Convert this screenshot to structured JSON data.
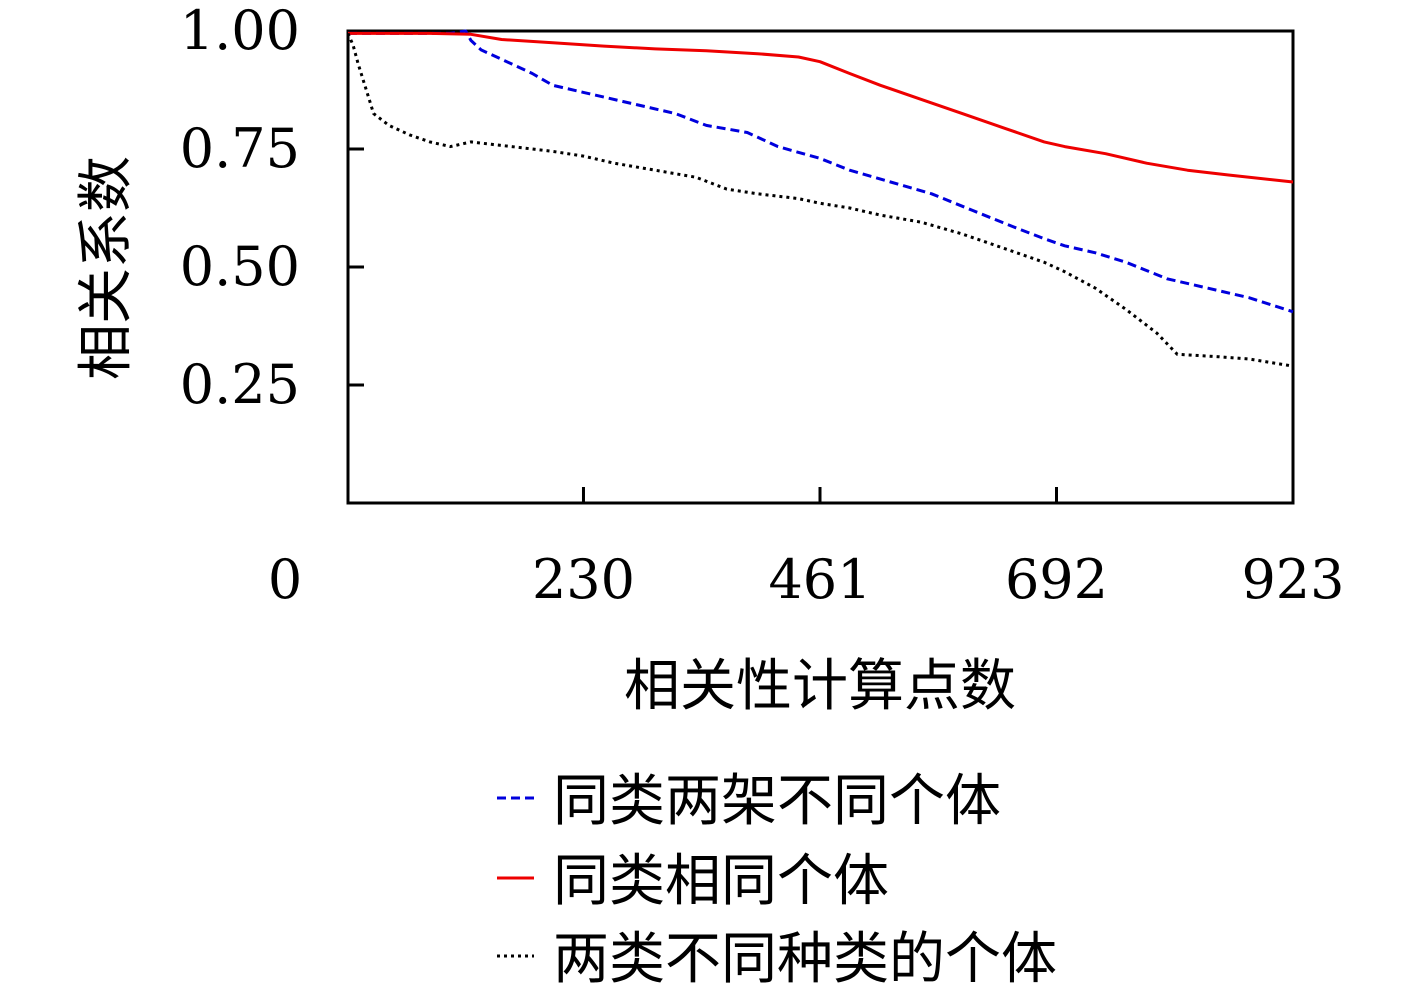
{
  "chart_data": {
    "type": "line",
    "title": "",
    "xlabel": "相关性计算点数",
    "ylabel": "相关系数",
    "xlim": [
      0,
      923
    ],
    "ylim": [
      0,
      1.0
    ],
    "x_ticks": [
      0,
      230,
      461,
      692,
      923
    ],
    "y_ticks": [
      0.25,
      0.5,
      0.75,
      1.0
    ],
    "x_tick_labels": [
      "0",
      "230",
      "461",
      "692",
      "923"
    ],
    "y_tick_labels": [
      "0.25",
      "0.50",
      "0.75",
      "1.00"
    ],
    "grid": false,
    "legend_position": "bottom",
    "series": [
      {
        "name": "同类两架不同个体",
        "color": "#0000dd",
        "dash": "dashed",
        "x": [
          0,
          20,
          60,
          100,
          115,
          120,
          130,
          150,
          180,
          200,
          230,
          280,
          320,
          350,
          390,
          420,
          461,
          490,
          530,
          570,
          610,
          650,
          680,
          700,
          730,
          760,
          800,
          840,
          880,
          923
        ],
        "y": [
          0.995,
          0.995,
          0.995,
          0.995,
          1.0,
          0.98,
          0.96,
          0.94,
          0.91,
          0.885,
          0.87,
          0.845,
          0.825,
          0.8,
          0.785,
          0.755,
          0.73,
          0.705,
          0.68,
          0.655,
          0.62,
          0.585,
          0.56,
          0.545,
          0.53,
          0.51,
          0.475,
          0.455,
          0.435,
          0.405
        ]
      },
      {
        "name": "同类相同个体",
        "color": "#ee0000",
        "dash": "solid",
        "x": [
          0,
          30,
          80,
          120,
          150,
          200,
          250,
          300,
          350,
          400,
          440,
          461,
          490,
          520,
          560,
          600,
          640,
          680,
          700,
          740,
          780,
          820,
          860,
          923
        ],
        "y": [
          0.995,
          0.995,
          0.995,
          0.993,
          0.982,
          0.975,
          0.968,
          0.962,
          0.958,
          0.952,
          0.945,
          0.935,
          0.91,
          0.885,
          0.855,
          0.825,
          0.795,
          0.765,
          0.755,
          0.74,
          0.72,
          0.705,
          0.695,
          0.68
        ]
      },
      {
        "name": "两类不同种类的个体",
        "color": "#000000",
        "dash": "dotted",
        "x": [
          0,
          5,
          10,
          20,
          25,
          40,
          60,
          80,
          100,
          120,
          140,
          160,
          200,
          230,
          260,
          300,
          340,
          370,
          400,
          440,
          461,
          490,
          520,
          560,
          600,
          640,
          680,
          700,
          730,
          760,
          790,
          810,
          850,
          880,
          923
        ],
        "y": [
          0.995,
          0.97,
          0.93,
          0.86,
          0.825,
          0.8,
          0.78,
          0.765,
          0.755,
          0.765,
          0.76,
          0.755,
          0.745,
          0.735,
          0.72,
          0.705,
          0.69,
          0.665,
          0.655,
          0.645,
          0.635,
          0.625,
          0.61,
          0.595,
          0.57,
          0.54,
          0.51,
          0.49,
          0.455,
          0.41,
          0.36,
          0.315,
          0.31,
          0.305,
          0.29
        ]
      }
    ]
  }
}
